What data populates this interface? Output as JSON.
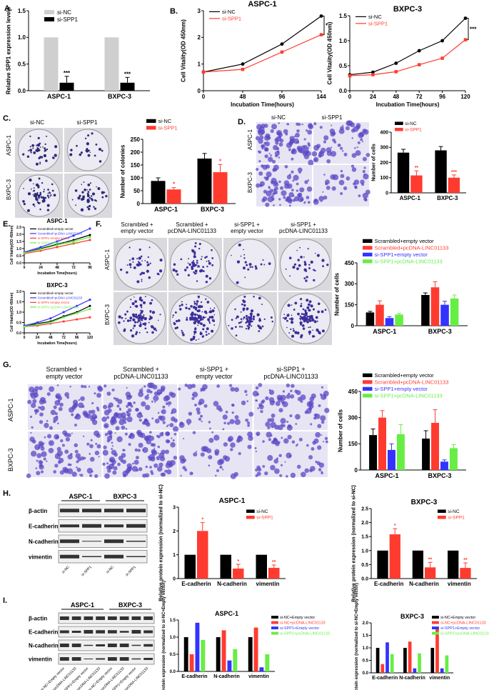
{
  "panels": {
    "A": "A.",
    "B": "B.",
    "C": "C.",
    "D": "D.",
    "E": "E.",
    "F": "F.",
    "G": "G.",
    "H": "H.",
    "I": "I."
  },
  "sig": {
    "three": "***",
    "two": "**",
    "one": "*"
  },
  "colors": {
    "black": "#000000",
    "red": "#ff3b30",
    "gray": "#cfcfcf",
    "blue": "#3333ff",
    "green": "#66ee44",
    "purple": "#4a3bbf",
    "lightpurple": "#c9c4ee"
  },
  "photo_text": {
    "si_nc": "si-NC",
    "si_spp1": "si-SPP1",
    "aspc1": "ASPC-1",
    "bxpc3": "BXPC-3",
    "scr_empty": [
      "Scrambled +",
      "empty vector"
    ],
    "scr_pcdna": [
      "Scrambled +",
      "pcDNA-LINC01133"
    ],
    "si_empty": [
      "si-SPP1 +",
      "empty vector"
    ],
    "si_pcdna": [
      "si-SPP1 +",
      "pcDNA-LINC01133"
    ]
  },
  "western": {
    "header": [
      "ASPC-1",
      "BXPC-3"
    ],
    "rows": [
      "β-actin",
      "E-cadherin",
      "N-cadherin",
      "vimentin"
    ],
    "lanes": [
      "si-NC",
      "si-SPP1",
      "si-NC",
      "si-SPP1"
    ],
    "lanes_I": [
      "si-NC+Empty vector",
      "si-NC+pcDNA-LINC01133",
      "si-SPP1+Empty vector",
      "si-SPP1+pcDNA-LINC01133",
      "si-NC+Empty vector",
      "si-NC+pcDNA-LINC01133",
      "si-SPP1+Empty vector",
      "si-SPP1+pcDNA-LINC01133"
    ]
  },
  "chart_data": [
    {
      "id": "A",
      "type": "bar",
      "categories": [
        "ASPC-1",
        "BXPC-3"
      ],
      "series": [
        {
          "name": "si-NC",
          "values": [
            1.0,
            1.0
          ],
          "color": "#cfcfcf"
        },
        {
          "name": "si-SPP1",
          "values": [
            0.15,
            0.15
          ],
          "color": "#000000",
          "err": [
            0.12,
            0.1
          ]
        }
      ],
      "ylabel": "Relative SPP1 expression levels",
      "ylim": [
        0,
        1.5
      ],
      "yticks": [
        "0.0",
        "0.5",
        "1.0",
        "1.5"
      ],
      "sig": [
        "***",
        "***"
      ]
    },
    {
      "id": "B1",
      "type": "line",
      "title": "ASPC-1",
      "x": [
        0,
        48,
        96,
        144
      ],
      "xticks": [
        "0",
        "48",
        "96",
        "144"
      ],
      "series": [
        {
          "name": "si-NC",
          "values": [
            0.7,
            1.0,
            1.75,
            2.8
          ],
          "color": "#000000"
        },
        {
          "name": "si-SPP1",
          "values": [
            0.7,
            0.8,
            1.45,
            2.1
          ],
          "color": "#ff3b30"
        }
      ],
      "xlabel": "Incubation Time(hours)",
      "ylabel": "Cell Vitality(OD 450nm)",
      "ylim": [
        0,
        3
      ],
      "yticks": [
        "0",
        "1",
        "2",
        "3"
      ],
      "xlim": [
        0,
        144
      ]
    },
    {
      "id": "B2",
      "type": "line",
      "title": "BXPC-3",
      "x": [
        0,
        24,
        48,
        72,
        96,
        120
      ],
      "xticks": [
        "0",
        "24",
        "48",
        "72",
        "96",
        "120"
      ],
      "series": [
        {
          "name": "si-NC",
          "values": [
            0.32,
            0.37,
            0.55,
            0.8,
            1.0,
            1.45
          ],
          "color": "#000000"
        },
        {
          "name": "si-SPP1",
          "values": [
            0.3,
            0.32,
            0.38,
            0.52,
            0.65,
            1.02
          ],
          "color": "#ff3b30"
        }
      ],
      "xlabel": "Incubation Time(hours)",
      "ylabel": "Cell Vitality(OD 450nm)",
      "ylim": [
        0,
        1.5
      ],
      "yticks": [
        "0.0",
        "0.5",
        "1.0",
        "1.5"
      ],
      "xlim": [
        0,
        120
      ]
    },
    {
      "id": "C",
      "type": "bar",
      "categories": [
        "ASPC-1",
        "BXPC-3"
      ],
      "series": [
        {
          "name": "si-NC",
          "values": [
            88,
            175
          ],
          "color": "#000000",
          "err": [
            12,
            20
          ]
        },
        {
          "name": "si-SPP1",
          "values": [
            55,
            122
          ],
          "color": "#ff3b30",
          "err": [
            7,
            30
          ]
        }
      ],
      "ylabel": "Number of colonies",
      "ylim": [
        0,
        250
      ],
      "yticks": [
        "0",
        "50",
        "100",
        "150",
        "200",
        "250"
      ],
      "sig": [
        "*",
        "*"
      ]
    },
    {
      "id": "D",
      "type": "bar",
      "categories": [
        "ASPC-1",
        "BXPC-3"
      ],
      "series": [
        {
          "name": "si-NC",
          "values": [
            265,
            280
          ],
          "color": "#000000",
          "err": [
            22,
            25
          ]
        },
        {
          "name": "si-SPP1",
          "values": [
            115,
            100
          ],
          "color": "#ff3b30",
          "err": [
            30,
            18
          ]
        }
      ],
      "ylabel": "Number of cells",
      "ylim": [
        0,
        400
      ],
      "yticks": [
        "0",
        "100",
        "200",
        "300",
        "400"
      ],
      "sig": [
        "**",
        "***"
      ]
    },
    {
      "id": "E1",
      "type": "line",
      "title": "ASPC-1",
      "x": [
        0,
        24,
        48,
        72,
        96
      ],
      "xticks": [
        "0",
        "24",
        "48",
        "72",
        "96"
      ],
      "series": [
        {
          "name": "Scrambled+empty vector",
          "values": [
            0.7,
            1.0,
            1.3,
            1.6,
            1.95
          ],
          "color": "#000000"
        },
        {
          "name": "Scrambled+pcDNA-LINC01133",
          "values": [
            0.75,
            1.1,
            1.5,
            1.9,
            2.4
          ],
          "color": "#3333ff"
        },
        {
          "name": "si-SPP1+empty vector",
          "values": [
            0.65,
            0.85,
            1.1,
            1.35,
            1.6
          ],
          "color": "#ff3b30"
        },
        {
          "name": "si-SPP1+pcDNA-LINC01133",
          "values": [
            0.7,
            0.95,
            1.25,
            1.5,
            1.8
          ],
          "color": "#66ee44"
        }
      ],
      "xlabel": "Incubation Time(hours)",
      "ylabel": "Cell Vitality(OD 450nm)",
      "ylim": [
        0,
        2.5
      ],
      "yticks": [
        "0.0",
        "0.5",
        "1.0",
        "1.5",
        "2.0",
        "2.5"
      ],
      "xlim": [
        0,
        96
      ]
    },
    {
      "id": "E2",
      "type": "line",
      "title": "BXPC-3",
      "x": [
        0,
        24,
        48,
        72,
        96,
        120
      ],
      "xticks": [
        "0",
        "24",
        "48",
        "72",
        "96",
        "120"
      ],
      "series": [
        {
          "name": "Scrambled+empty vector",
          "values": [
            0.3,
            0.45,
            0.55,
            0.8,
            1.0,
            1.3
          ],
          "color": "#000000"
        },
        {
          "name": "Scrambled+pcDNA-LINC01133",
          "values": [
            0.35,
            0.5,
            0.7,
            1.0,
            1.3,
            1.6
          ],
          "color": "#3333ff"
        },
        {
          "name": "si-SPP1+empty vector",
          "values": [
            0.3,
            0.35,
            0.45,
            0.55,
            0.65,
            0.75
          ],
          "color": "#ff3b30"
        },
        {
          "name": "si-SPP1+pcDNA-LINC01133",
          "values": [
            0.3,
            0.4,
            0.5,
            0.75,
            0.95,
            1.15
          ],
          "color": "#66ee44"
        }
      ],
      "xlabel": "Incubation Time(hours)",
      "ylabel": "Cell Vitality(OD 450nm)",
      "ylim": [
        0,
        2.0
      ],
      "yticks": [
        "0.0",
        "0.5",
        "1.0",
        "1.5",
        "2.0"
      ],
      "xlim": [
        0,
        120
      ]
    },
    {
      "id": "F",
      "type": "bar",
      "categories": [
        "ASPC-1",
        "BXPC-3"
      ],
      "series": [
        {
          "name": "Scrambled+empty vector",
          "values": [
            95,
            220
          ],
          "color": "#000000",
          "err": [
            8,
            15
          ]
        },
        {
          "name": "Scrambled+pcDNA-LINC01133",
          "values": [
            150,
            275
          ],
          "color": "#ff3b30",
          "err": [
            28,
            40
          ]
        },
        {
          "name": "si-SPP1+empty vector",
          "values": [
            55,
            150
          ],
          "color": "#3333ff",
          "err": [
            10,
            25
          ]
        },
        {
          "name": "si-SPP1+pcDNA-LINC01133",
          "values": [
            80,
            195
          ],
          "color": "#66ee44",
          "err": [
            8,
            25
          ]
        }
      ],
      "ylabel": "Number of cells",
      "ylim": [
        0,
        450
      ],
      "yticks": [
        "0",
        "150",
        "300",
        "450"
      ]
    },
    {
      "id": "G",
      "type": "bar",
      "categories": [
        "ASPC-1",
        "BXPC-3"
      ],
      "series": [
        {
          "name": "Scrambled+empty vector",
          "values": [
            200,
            180
          ],
          "color": "#000000",
          "err": [
            35,
            45
          ]
        },
        {
          "name": "Scrambled+pcDNA-LINC01133",
          "values": [
            300,
            270
          ],
          "color": "#ff3b30",
          "err": [
            40,
            75
          ]
        },
        {
          "name": "si-SPP1+empty vector",
          "values": [
            115,
            48
          ],
          "color": "#3333ff",
          "err": [
            35,
            10
          ]
        },
        {
          "name": "si-SPP1+pcDNA-LINC01133",
          "values": [
            205,
            125
          ],
          "color": "#66ee44",
          "err": [
            55,
            20
          ]
        }
      ],
      "ylabel": "Number of cells",
      "ylim": [
        0,
        450
      ],
      "yticks": [
        "0",
        "150",
        "300",
        "450"
      ]
    },
    {
      "id": "H1",
      "type": "bar",
      "title": "ASPC-1",
      "categories": [
        "E-cadherin",
        "N-cadherin",
        "vimentin"
      ],
      "series": [
        {
          "name": "si-NC",
          "values": [
            1.0,
            1.0,
            1.0
          ],
          "color": "#000000"
        },
        {
          "name": "si-SPP1",
          "values": [
            2.0,
            0.42,
            0.45
          ],
          "color": "#ff3b30",
          "err": [
            0.35,
            0.18,
            0.12
          ]
        }
      ],
      "ylabel": "Relative protein expression (normalized to si-NC)",
      "ylim": [
        0,
        3
      ],
      "yticks": [
        "0",
        "1",
        "2",
        "3"
      ],
      "sig": [
        "*",
        "*",
        "**"
      ]
    },
    {
      "id": "H2",
      "type": "bar",
      "title": "BXPC-3",
      "categories": [
        "E-cadherin",
        "N-cadherin",
        "vimentin"
      ],
      "series": [
        {
          "name": "si-NC",
          "values": [
            1.0,
            1.0,
            1.0
          ],
          "color": "#000000"
        },
        {
          "name": "si-SPP1",
          "values": [
            1.58,
            0.4,
            0.38
          ],
          "color": "#ff3b30",
          "err": [
            0.2,
            0.18,
            0.18
          ]
        }
      ],
      "ylabel": "Relative protein expression (normalized to si-NC)",
      "ylim": [
        0,
        2.5
      ],
      "yticks": [
        "0.0",
        "0.5",
        "1.0",
        "1.5",
        "2.0",
        "2.5"
      ],
      "sig": [
        "*",
        "**",
        "**"
      ]
    },
    {
      "id": "I1",
      "type": "bar",
      "title": "ASPC-1",
      "categories": [
        "E-cadherin",
        "N-cadherin",
        "vimentin"
      ],
      "series": [
        {
          "name": "si-NC+Empty vector",
          "values": [
            1.0,
            1.0,
            1.0
          ],
          "color": "#000000"
        },
        {
          "name": "si-NC+pcDNA-LINC01133",
          "values": [
            0.5,
            1.2,
            1.28
          ],
          "color": "#ff3b30"
        },
        {
          "name": "si-SPP1+Empty vector",
          "values": [
            1.42,
            0.32,
            0.12
          ],
          "color": "#3333ff"
        },
        {
          "name": "si-SPP1+pcDNA-LINC01133",
          "values": [
            0.92,
            0.65,
            0.5
          ],
          "color": "#66ee44"
        }
      ],
      "ylabel": "Relative protein expression (normalized to si-NC+Empty vector)",
      "ylim": [
        0,
        1.5
      ],
      "yticks": [
        "0.0",
        "0.5",
        "1.0",
        "1.5"
      ]
    },
    {
      "id": "I2",
      "type": "bar",
      "title": "BXPC-3",
      "categories": [
        "E-cadherin",
        "N-cadherin",
        "vimentin"
      ],
      "series": [
        {
          "name": "si-NC+Empty vector",
          "values": [
            1.0,
            1.0,
            1.0
          ],
          "color": "#000000"
        },
        {
          "name": "si-NC+pcDNA-LINC01133",
          "values": [
            0.35,
            1.25,
            1.8
          ],
          "color": "#ff3b30"
        },
        {
          "name": "si-SPP1+Empty vector",
          "values": [
            1.22,
            0.18,
            0.18
          ],
          "color": "#3333ff"
        },
        {
          "name": "si-SPP1+pcDNA-LINC01133",
          "values": [
            0.75,
            0.78,
            0.7
          ],
          "color": "#66ee44"
        }
      ],
      "ylabel": "Relative protein expression (normalized to si-NC+Empty vector)",
      "ylim": [
        0,
        2.0
      ],
      "yticks": [
        "0.0",
        "0.5",
        "1.0",
        "1.5",
        "2.0"
      ]
    }
  ]
}
